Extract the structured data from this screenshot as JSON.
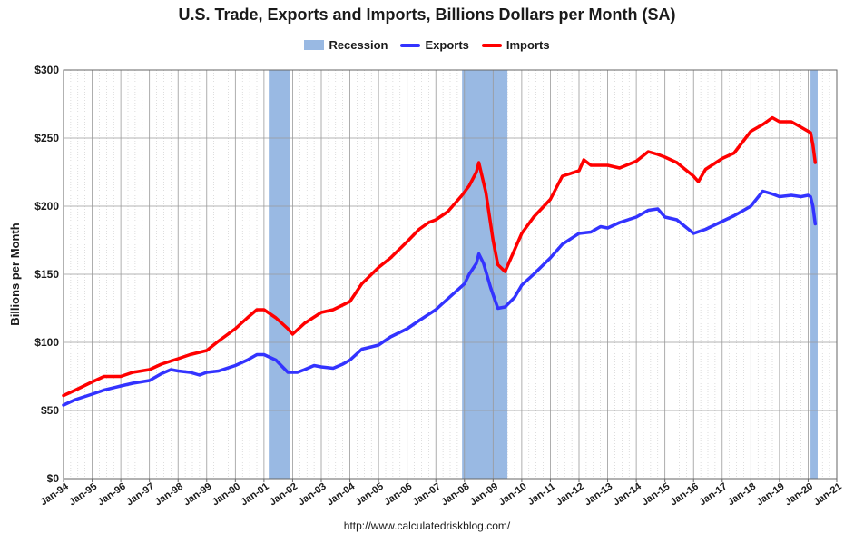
{
  "chart_data": {
    "type": "line",
    "title": "U.S. Trade, Exports and Imports, Billions Dollars per Month (SA)",
    "ylabel": "Billions per Month",
    "xlabel": "",
    "source": "http://www.calculatedriskblog.com/",
    "ylim": [
      0,
      300
    ],
    "xlim": [
      "1994-01",
      "2021-01"
    ],
    "yticks": [
      {
        "value": 0,
        "label": "$0"
      },
      {
        "value": 50,
        "label": "$50"
      },
      {
        "value": 100,
        "label": "$100"
      },
      {
        "value": 150,
        "label": "$150"
      },
      {
        "value": 200,
        "label": "$200"
      },
      {
        "value": 250,
        "label": "$250"
      },
      {
        "value": 300,
        "label": "$300"
      }
    ],
    "xticks": [
      "Jan-94",
      "Jan-95",
      "Jan-96",
      "Jan-97",
      "Jan-98",
      "Jan-99",
      "Jan-00",
      "Jan-01",
      "Jan-02",
      "Jan-03",
      "Jan-04",
      "Jan-05",
      "Jan-06",
      "Jan-07",
      "Jan-08",
      "Jan-09",
      "Jan-10",
      "Jan-11",
      "Jan-12",
      "Jan-13",
      "Jan-14",
      "Jan-15",
      "Jan-16",
      "Jan-17",
      "Jan-18",
      "Jan-19",
      "Jan-20",
      "Jan-21"
    ],
    "grid": true,
    "legend_position": "top",
    "legend": [
      {
        "name": "Recession",
        "type": "band",
        "color": "#99b9e3"
      },
      {
        "name": "Exports",
        "type": "line",
        "color": "#3333ff"
      },
      {
        "name": "Imports",
        "type": "line",
        "color": "#ff0000"
      }
    ],
    "recessions": [
      {
        "start": "2001-03",
        "end": "2001-11"
      },
      {
        "start": "2007-12",
        "end": "2009-06"
      },
      {
        "start": "2020-02",
        "end": "2020-04"
      }
    ],
    "series": [
      {
        "name": "Exports",
        "color": "#3333ff",
        "points": [
          [
            "1994-01",
            54
          ],
          [
            "1994-06",
            58
          ],
          [
            "1995-01",
            62
          ],
          [
            "1995-06",
            65
          ],
          [
            "1996-01",
            68
          ],
          [
            "1996-06",
            70
          ],
          [
            "1997-01",
            72
          ],
          [
            "1997-06",
            77
          ],
          [
            "1997-10",
            80
          ],
          [
            "1998-01",
            79
          ],
          [
            "1998-06",
            78
          ],
          [
            "1998-10",
            76
          ],
          [
            "1999-01",
            78
          ],
          [
            "1999-06",
            79
          ],
          [
            "2000-01",
            83
          ],
          [
            "2000-06",
            87
          ],
          [
            "2000-10",
            91
          ],
          [
            "2001-01",
            91
          ],
          [
            "2001-06",
            87
          ],
          [
            "2001-11",
            78
          ],
          [
            "2002-03",
            78
          ],
          [
            "2002-06",
            80
          ],
          [
            "2002-10",
            83
          ],
          [
            "2003-01",
            82
          ],
          [
            "2003-06",
            81
          ],
          [
            "2003-10",
            84
          ],
          [
            "2004-01",
            87
          ],
          [
            "2004-06",
            95
          ],
          [
            "2005-01",
            98
          ],
          [
            "2005-06",
            104
          ],
          [
            "2006-01",
            110
          ],
          [
            "2006-06",
            116
          ],
          [
            "2007-01",
            124
          ],
          [
            "2007-06",
            132
          ],
          [
            "2008-01",
            143
          ],
          [
            "2008-03",
            150
          ],
          [
            "2008-06",
            158
          ],
          [
            "2008-07",
            165
          ],
          [
            "2008-09",
            158
          ],
          [
            "2008-12",
            140
          ],
          [
            "2009-03",
            125
          ],
          [
            "2009-06",
            126
          ],
          [
            "2009-10",
            133
          ],
          [
            "2010-01",
            142
          ],
          [
            "2010-06",
            150
          ],
          [
            "2011-01",
            162
          ],
          [
            "2011-06",
            172
          ],
          [
            "2012-01",
            180
          ],
          [
            "2012-06",
            181
          ],
          [
            "2012-10",
            185
          ],
          [
            "2013-01",
            184
          ],
          [
            "2013-06",
            188
          ],
          [
            "2014-01",
            192
          ],
          [
            "2014-06",
            197
          ],
          [
            "2014-10",
            198
          ],
          [
            "2015-01",
            192
          ],
          [
            "2015-06",
            190
          ],
          [
            "2016-01",
            180
          ],
          [
            "2016-06",
            183
          ],
          [
            "2016-12",
            188
          ],
          [
            "2017-06",
            193
          ],
          [
            "2018-01",
            200
          ],
          [
            "2018-06",
            211
          ],
          [
            "2018-10",
            209
          ],
          [
            "2019-01",
            207
          ],
          [
            "2019-06",
            208
          ],
          [
            "2019-10",
            207
          ],
          [
            "2020-01",
            208
          ],
          [
            "2020-02",
            207
          ],
          [
            "2020-03",
            200
          ],
          [
            "2020-04",
            187
          ]
        ]
      },
      {
        "name": "Imports",
        "color": "#ff0000",
        "points": [
          [
            "1994-01",
            61
          ],
          [
            "1994-06",
            65
          ],
          [
            "1995-01",
            71
          ],
          [
            "1995-06",
            75
          ],
          [
            "1996-01",
            75
          ],
          [
            "1996-06",
            78
          ],
          [
            "1997-01",
            80
          ],
          [
            "1997-06",
            84
          ],
          [
            "1998-01",
            88
          ],
          [
            "1998-06",
            91
          ],
          [
            "1999-01",
            94
          ],
          [
            "1999-06",
            101
          ],
          [
            "2000-01",
            110
          ],
          [
            "2000-06",
            118
          ],
          [
            "2000-10",
            124
          ],
          [
            "2001-01",
            124
          ],
          [
            "2001-06",
            118
          ],
          [
            "2001-11",
            110
          ],
          [
            "2002-01",
            106
          ],
          [
            "2002-06",
            114
          ],
          [
            "2003-01",
            122
          ],
          [
            "2003-06",
            124
          ],
          [
            "2004-01",
            130
          ],
          [
            "2004-06",
            143
          ],
          [
            "2005-01",
            155
          ],
          [
            "2005-06",
            162
          ],
          [
            "2006-01",
            174
          ],
          [
            "2006-06",
            183
          ],
          [
            "2006-10",
            188
          ],
          [
            "2007-01",
            190
          ],
          [
            "2007-06",
            196
          ],
          [
            "2007-12",
            208
          ],
          [
            "2008-03",
            215
          ],
          [
            "2008-06",
            225
          ],
          [
            "2008-07",
            232
          ],
          [
            "2008-10",
            210
          ],
          [
            "2009-01",
            175
          ],
          [
            "2009-03",
            157
          ],
          [
            "2009-06",
            152
          ],
          [
            "2009-10",
            168
          ],
          [
            "2010-01",
            180
          ],
          [
            "2010-06",
            192
          ],
          [
            "2011-01",
            205
          ],
          [
            "2011-06",
            222
          ],
          [
            "2012-01",
            226
          ],
          [
            "2012-03",
            234
          ],
          [
            "2012-06",
            230
          ],
          [
            "2013-01",
            230
          ],
          [
            "2013-06",
            228
          ],
          [
            "2014-01",
            233
          ],
          [
            "2014-06",
            240
          ],
          [
            "2014-10",
            238
          ],
          [
            "2015-01",
            236
          ],
          [
            "2015-06",
            232
          ],
          [
            "2016-01",
            222
          ],
          [
            "2016-03",
            218
          ],
          [
            "2016-06",
            227
          ],
          [
            "2017-01",
            235
          ],
          [
            "2017-06",
            239
          ],
          [
            "2018-01",
            255
          ],
          [
            "2018-06",
            260
          ],
          [
            "2018-10",
            265
          ],
          [
            "2019-01",
            262
          ],
          [
            "2019-06",
            262
          ],
          [
            "2019-10",
            258
          ],
          [
            "2020-01",
            255
          ],
          [
            "2020-02",
            254
          ],
          [
            "2020-03",
            245
          ],
          [
            "2020-04",
            232
          ]
        ]
      }
    ]
  }
}
